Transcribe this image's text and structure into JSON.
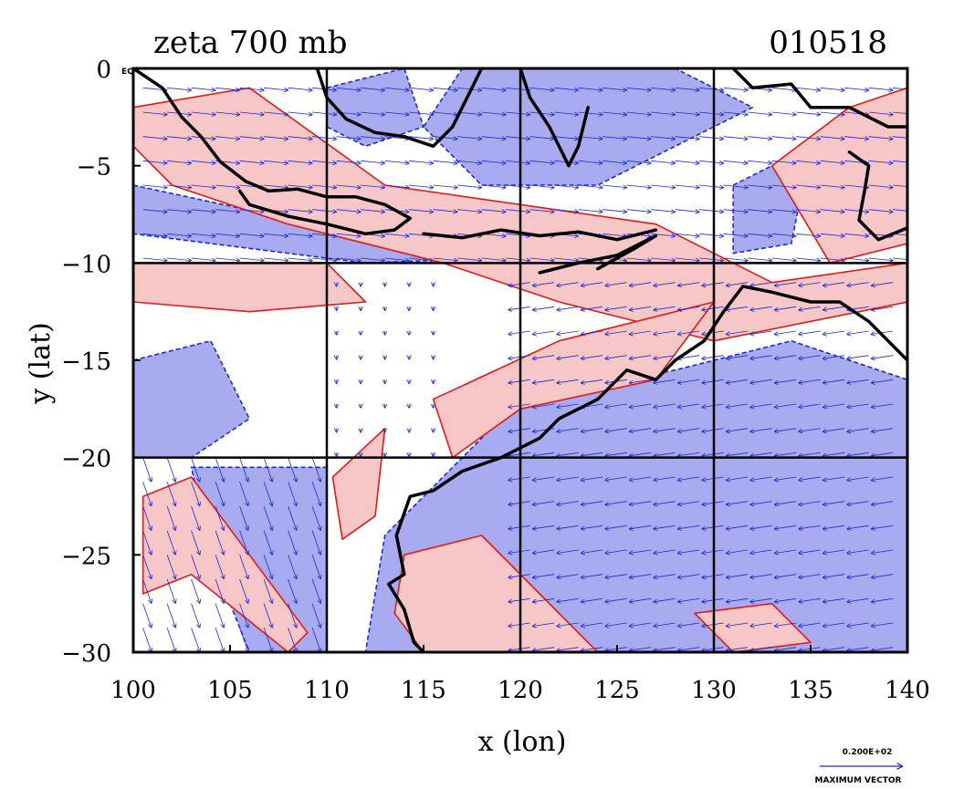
{
  "title_left": "zeta 700 mb",
  "title_right": "010518",
  "corner_tag": "EQ",
  "legend": {
    "vector_value": "0.200E+02",
    "vector_label": "MAXIMUM VECTOR"
  },
  "colors": {
    "positive_fill": "#f7c6c6",
    "positive_contour": "#e11b1b",
    "negative_fill": "#a9abf0",
    "negative_contour": "#1a2bd6",
    "vector": "#1a2bd6",
    "coastline": "#000000",
    "grid": "#000000"
  },
  "chart_data": {
    "type": "map",
    "title": "zeta 700 mb",
    "date_label": "010518",
    "xlabel": "x (lon)",
    "ylabel": "y (lat)",
    "xlim": [
      100,
      140
    ],
    "ylim": [
      -30,
      0
    ],
    "x_ticks": [
      100,
      105,
      110,
      115,
      120,
      125,
      130,
      135,
      140
    ],
    "y_ticks": [
      0,
      -5,
      -10,
      -15,
      -20,
      -25,
      -30
    ],
    "x_tick_labels": [
      "100",
      "105",
      "110",
      "115",
      "120",
      "125",
      "130",
      "135",
      "140"
    ],
    "y_tick_labels": [
      "0",
      "−5",
      "−10",
      "−15",
      "−20",
      "−25",
      "−30"
    ],
    "grid_lon": [
      110,
      120,
      130
    ],
    "grid_lat": [
      -10,
      -20
    ],
    "fields": [
      "relative vorticity (filled contours: red positive, blue negative)",
      "wind vectors"
    ],
    "positive_regions": [
      {
        "lon": [
          [
            100,
            -2
          ],
          [
            106,
            -1
          ],
          [
            113,
            -6
          ],
          [
            120,
            -7
          ],
          [
            127,
            -8
          ],
          [
            133,
            -11
          ],
          [
            140,
            -10
          ],
          [
            140,
            -12
          ],
          [
            130,
            -14
          ],
          [
            122,
            -12
          ],
          [
            116,
            -10
          ],
          [
            108,
            -8
          ],
          [
            102,
            -6
          ],
          [
            100,
            -4
          ]
        ]
      },
      {
        "lon": [
          [
            100,
            -10
          ],
          [
            110,
            -10
          ],
          [
            112,
            -12
          ],
          [
            106,
            -12.5
          ],
          [
            100,
            -12
          ]
        ]
      },
      {
        "lon": [
          [
            115.5,
            -17
          ],
          [
            122,
            -14
          ],
          [
            130,
            -12
          ],
          [
            127,
            -16
          ],
          [
            120,
            -17.5
          ],
          [
            116.5,
            -20
          ]
        ]
      },
      {
        "lon": [
          [
            110.3,
            -21
          ],
          [
            113,
            -18.5
          ],
          [
            112.5,
            -23
          ],
          [
            110.8,
            -24.2
          ]
        ]
      },
      {
        "lon": [
          [
            100.5,
            -22
          ],
          [
            103,
            -21
          ],
          [
            106,
            -25
          ],
          [
            109,
            -29
          ],
          [
            108,
            -30
          ],
          [
            103,
            -26
          ],
          [
            100.5,
            -27
          ]
        ]
      },
      {
        "lon": [
          [
            133,
            -5
          ],
          [
            137,
            -2
          ],
          [
            140,
            -1
          ],
          [
            140,
            -9
          ],
          [
            136,
            -10
          ]
        ]
      },
      {
        "lon": [
          [
            114,
            -25
          ],
          [
            118,
            -24
          ],
          [
            121,
            -27
          ],
          [
            124,
            -30
          ],
          [
            115,
            -30
          ],
          [
            113.5,
            -28
          ]
        ]
      },
      {
        "lon": [
          [
            129,
            -28
          ],
          [
            133,
            -27.5
          ],
          [
            135,
            -29.5
          ],
          [
            131,
            -30
          ]
        ]
      }
    ],
    "negative_regions": [
      {
        "lon": [
          [
            100,
            -15
          ],
          [
            104,
            -14
          ],
          [
            106,
            -18
          ],
          [
            103,
            -20
          ],
          [
            100,
            -20
          ]
        ]
      },
      {
        "lon": [
          [
            103,
            -20.5
          ],
          [
            110,
            -20.5
          ],
          [
            110,
            -30
          ],
          [
            106,
            -30
          ],
          [
            104,
            -25
          ]
        ]
      },
      {
        "lon": [
          [
            120,
            -17
          ],
          [
            128,
            -15.5
          ],
          [
            134,
            -14
          ],
          [
            140,
            -16
          ],
          [
            140,
            -30
          ],
          [
            112,
            -30
          ],
          [
            113,
            -24
          ],
          [
            116,
            -21
          ]
        ]
      },
      {
        "lon": [
          [
            100,
            -6
          ],
          [
            107,
            -7.5
          ],
          [
            112,
            -8.5
          ],
          [
            120,
            -9
          ],
          [
            126,
            -8.5
          ],
          [
            126,
            -9.5
          ],
          [
            112,
            -10
          ],
          [
            104,
            -9
          ],
          [
            100,
            -8.5
          ]
        ]
      },
      {
        "lon": [
          [
            117,
            0
          ],
          [
            128,
            0
          ],
          [
            132,
            -2
          ],
          [
            128,
            -4
          ],
          [
            124,
            -6
          ],
          [
            118,
            -6
          ],
          [
            115,
            -3
          ]
        ]
      },
      {
        "lon": [
          [
            131,
            -6
          ],
          [
            135,
            -4
          ],
          [
            134,
            -9
          ],
          [
            131,
            -9.5
          ]
        ]
      },
      {
        "lon": [
          [
            110,
            -1
          ],
          [
            114,
            0
          ],
          [
            115,
            -3
          ],
          [
            112,
            -4
          ],
          [
            110,
            -3
          ]
        ]
      }
    ],
    "coastlines": [
      {
        "lon": [
          [
            100,
            0
          ],
          [
            101.5,
            -1
          ],
          [
            102.5,
            -2.5
          ],
          [
            103.5,
            -3.5
          ],
          [
            104.5,
            -4.8
          ],
          [
            105.8,
            -5.8
          ],
          [
            107,
            -6.3
          ],
          [
            108.5,
            -6.2
          ],
          [
            110,
            -6.6
          ],
          [
            111.5,
            -6.6
          ],
          [
            113,
            -7
          ],
          [
            114.3,
            -7.7
          ]
        ]
      },
      {
        "lon": [
          [
            114.3,
            -7.7
          ],
          [
            113.5,
            -8.3
          ],
          [
            112,
            -8.5
          ],
          [
            110,
            -8
          ],
          [
            108,
            -7.6
          ],
          [
            106,
            -7
          ],
          [
            105.5,
            -6.3
          ]
        ]
      },
      {
        "lon": [
          [
            115,
            -8.5
          ],
          [
            117,
            -8.7
          ],
          [
            119,
            -8.3
          ],
          [
            121,
            -8.6
          ],
          [
            123,
            -8.4
          ],
          [
            125,
            -8.8
          ],
          [
            127,
            -8.3
          ]
        ]
      },
      {
        "lon": [
          [
            121,
            -10.5
          ],
          [
            123,
            -10
          ],
          [
            125,
            -9.6
          ],
          [
            127,
            -8.6
          ],
          [
            126,
            -9.2
          ],
          [
            124,
            -10.3
          ]
        ]
      },
      {
        "lon": [
          [
            109.5,
            0
          ],
          [
            110,
            -1.5
          ],
          [
            111,
            -2.6
          ],
          [
            112.5,
            -3.3
          ],
          [
            114,
            -3.5
          ],
          [
            115.5,
            -4
          ],
          [
            116.5,
            -3
          ],
          [
            117,
            -2
          ],
          [
            117.5,
            -1
          ],
          [
            118,
            0
          ]
        ]
      },
      {
        "lon": [
          [
            120,
            0
          ],
          [
            120.5,
            -1.5
          ],
          [
            121.5,
            -3
          ],
          [
            122.5,
            -5
          ],
          [
            123,
            -4
          ],
          [
            123.5,
            -2
          ]
        ]
      },
      {
        "lon": [
          [
            131,
            0
          ],
          [
            132,
            -1
          ],
          [
            134,
            -0.8
          ],
          [
            135,
            -2
          ],
          [
            137,
            -2
          ],
          [
            139,
            -3
          ],
          [
            140,
            -3
          ]
        ]
      },
      {
        "lon": [
          [
            140,
            -8.2
          ],
          [
            138.5,
            -8.8
          ],
          [
            137.5,
            -7.8
          ],
          [
            137.8,
            -6.2
          ],
          [
            138,
            -5
          ],
          [
            137,
            -4.3
          ]
        ]
      },
      {
        "lon": [
          [
            140,
            -15
          ],
          [
            138,
            -13
          ],
          [
            136.5,
            -12
          ],
          [
            135,
            -12
          ],
          [
            133,
            -11.5
          ],
          [
            131.5,
            -11.2
          ],
          [
            130.5,
            -12.5
          ],
          [
            129.5,
            -14
          ],
          [
            128,
            -15
          ],
          [
            127,
            -16
          ],
          [
            125.5,
            -15.5
          ],
          [
            124,
            -17
          ],
          [
            122,
            -18
          ],
          [
            121,
            -19
          ],
          [
            119,
            -20
          ],
          [
            117,
            -20.7
          ],
          [
            115.5,
            -21.7
          ],
          [
            114.3,
            -22
          ],
          [
            113.6,
            -24
          ],
          [
            114,
            -26
          ],
          [
            113.2,
            -26.5
          ],
          [
            114,
            -27.8
          ],
          [
            114.5,
            -29.5
          ],
          [
            115,
            -30
          ]
        ]
      }
    ],
    "vector_regions": [
      {
        "lon": [
          100,
          140
        ],
        "lat": [
          -1,
          -10
        ],
        "u": 1.0,
        "v": -0.1,
        "scale": 1.0
      },
      {
        "lon": [
          110,
          116
        ],
        "lat": [
          -11,
          -20
        ],
        "u": 0.0,
        "v": -1.0,
        "scale": 0.15
      },
      {
        "lon": [
          100,
          110
        ],
        "lat": [
          -20,
          -30
        ],
        "u": 0.35,
        "v": -1.0,
        "scale": 1.0
      },
      {
        "lon": [
          120,
          140
        ],
        "lat": [
          -11,
          -30
        ],
        "u": -1.0,
        "v": -0.15,
        "scale": 0.9
      }
    ]
  }
}
